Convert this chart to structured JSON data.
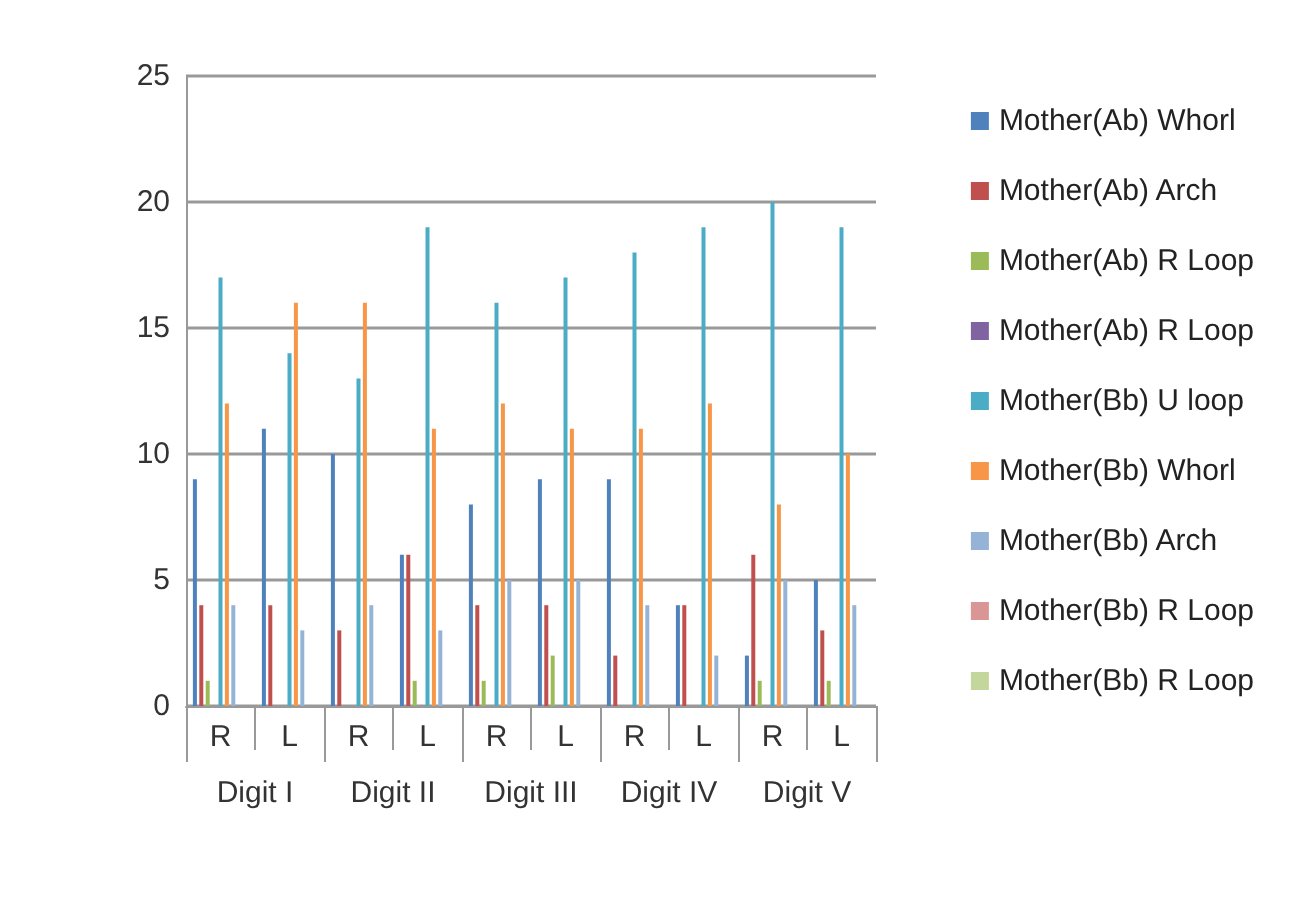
{
  "chart_data": {
    "type": "bar",
    "categories": [
      "R",
      "L",
      "R",
      "L",
      "R",
      "L",
      "R",
      "L",
      "R",
      "L"
    ],
    "annotations": [
      "Digit I",
      "Digit II",
      "Digit III",
      "Digit IV",
      "Digit V"
    ],
    "series": [
      {
        "name": "Mother(Ab) Whorl",
        "color": "#4f81bd",
        "values": [
          9,
          11,
          10,
          6,
          8,
          9,
          9,
          4,
          2,
          5
        ]
      },
      {
        "name": "Mother(Ab) Arch",
        "color": "#c0504d",
        "values": [
          4,
          4,
          3,
          6,
          4,
          4,
          2,
          4,
          6,
          3
        ]
      },
      {
        "name": "Mother(Ab) R Loop",
        "color": "#9bbb59",
        "values": [
          1,
          0,
          0,
          1,
          1,
          2,
          0,
          0,
          1,
          1
        ]
      },
      {
        "name": "Mother(Ab) R Loop",
        "color": "#8064a2",
        "values": [
          0,
          0,
          0,
          0,
          0,
          0,
          0,
          0,
          0,
          0
        ]
      },
      {
        "name": "Mother(Bb) U loop",
        "color": "#4bacc6",
        "values": [
          17,
          14,
          13,
          19,
          16,
          17,
          18,
          19,
          20,
          19
        ]
      },
      {
        "name": "Mother(Bb) Whorl",
        "color": "#f79646",
        "values": [
          12,
          16,
          16,
          11,
          12,
          11,
          11,
          12,
          8,
          10
        ]
      },
      {
        "name": "Mother(Bb) Arch",
        "color": "#95b3d7",
        "values": [
          4,
          3,
          4,
          3,
          5,
          5,
          4,
          2,
          5,
          4
        ]
      },
      {
        "name": "Mother(Bb) R Loop",
        "color": "#d99694",
        "values": [
          0,
          0,
          0,
          0,
          0,
          0,
          0,
          0,
          0,
          0
        ]
      },
      {
        "name": "Mother(Bb) R Loop",
        "color": "#c3d69b",
        "values": [
          0,
          0,
          0,
          0,
          0,
          0,
          0,
          0,
          0,
          0
        ]
      }
    ],
    "ylim": [
      0,
      25
    ],
    "yticks": [
      0,
      5,
      10,
      15,
      20,
      25
    ],
    "grid": "y",
    "legend": "right"
  }
}
